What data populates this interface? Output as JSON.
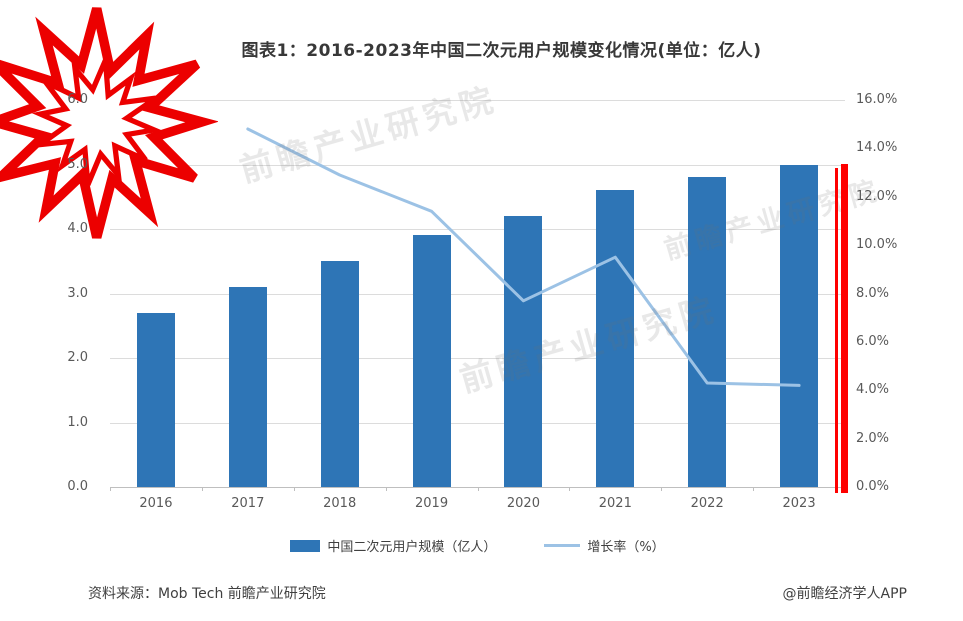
{
  "page": {
    "title": "图表1：2016-2023年中国二次元用户规模变化情况(单位：亿人)",
    "source_note": "资料来源：Mob Tech 前瞻产业研究院",
    "credit": "@前瞻经济学人APP",
    "watermark_text": "前瞻产业研究院"
  },
  "chart_data": {
    "type": "bar+line",
    "title": "图表1：2016-2023年中国二次元用户规模变化情况(单位：亿人)",
    "categories": [
      "2016",
      "2017",
      "2018",
      "2019",
      "2020",
      "2021",
      "2022",
      "2023"
    ],
    "series": [
      {
        "name": "中国二次元用户规模（亿人）",
        "type": "bar",
        "axis": "left",
        "color": "#2E75B6",
        "values": [
          2.7,
          3.1,
          3.5,
          3.9,
          4.2,
          4.6,
          4.8,
          5.0
        ]
      },
      {
        "name": "增长率（%）",
        "type": "line",
        "axis": "right",
        "color": "#9CC2E5",
        "values": [
          null,
          14.8,
          12.9,
          11.4,
          7.7,
          9.5,
          4.3,
          4.2
        ]
      }
    ],
    "left_axis": {
      "min": 0,
      "max": 6,
      "step": 1,
      "tick_labels": [
        "0.0",
        "1.0",
        "2.0",
        "3.0",
        "4.0",
        "5.0",
        "6.0"
      ]
    },
    "right_axis": {
      "min": 0,
      "max": 16,
      "step": 2,
      "tick_labels": [
        "0.0%",
        "2.0%",
        "4.0%",
        "6.0%",
        "8.0%",
        "10.0%",
        "12.0%",
        "14.0%",
        "16.0%"
      ]
    },
    "grid": true,
    "legend_position": "bottom",
    "annotations": {
      "starburst_sticker": {
        "position": "top-left",
        "fill": "#FFFFFF",
        "stroke": "#EC0000"
      },
      "red_vertical_line": {
        "position": "right-edge-of-plot",
        "color": "#FF0000"
      }
    }
  }
}
